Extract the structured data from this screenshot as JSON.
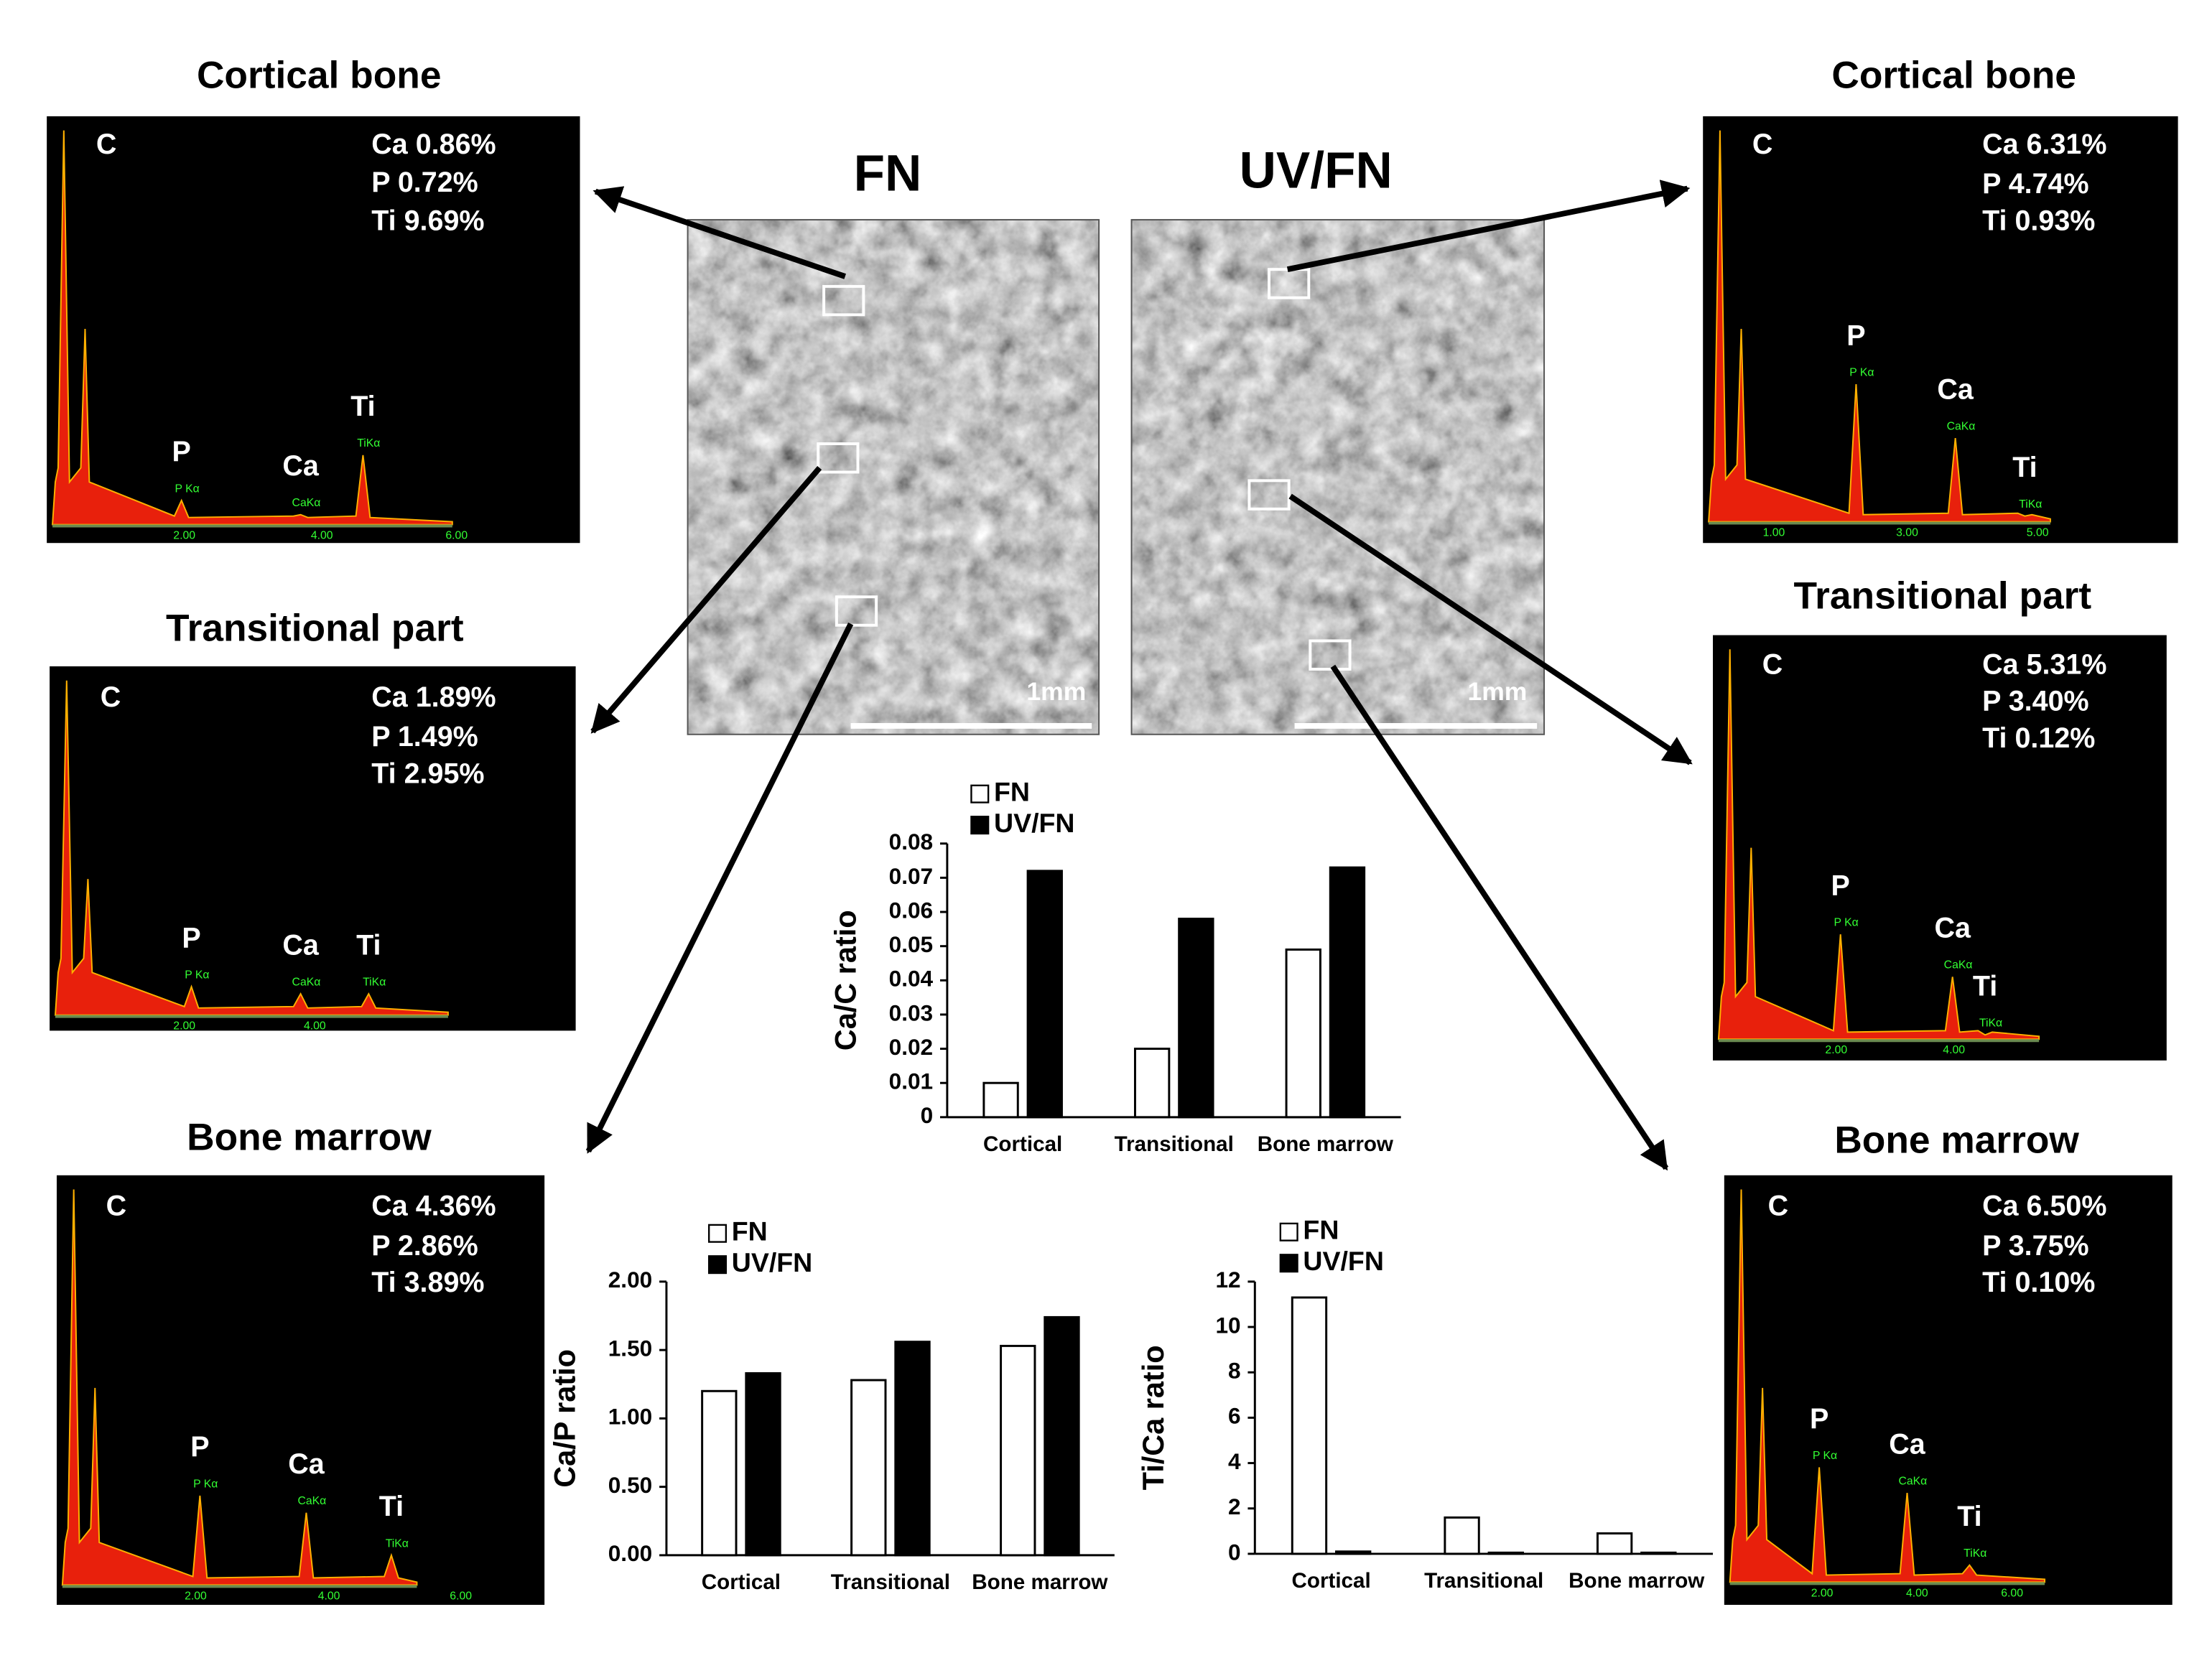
{
  "chart_data": [
    {
      "type": "bar",
      "ylabel": "Ca/C ratio",
      "categories": [
        "Cortical",
        "Transitional",
        "Bone marrow"
      ],
      "series": [
        {
          "name": "FN",
          "color": "#ffffff",
          "values": [
            0.01,
            0.02,
            0.049
          ]
        },
        {
          "name": "UV/FN",
          "color": "#000000",
          "values": [
            0.072,
            0.058,
            0.073
          ]
        }
      ],
      "ylim": [
        0,
        0.08
      ],
      "yticks": [
        0,
        0.01,
        0.02,
        0.03,
        0.04,
        0.05,
        0.06,
        0.07,
        0.08
      ]
    },
    {
      "type": "bar",
      "ylabel": "Ca/P ratio",
      "categories": [
        "Cortical",
        "Transitional",
        "Bone marrow"
      ],
      "series": [
        {
          "name": "FN",
          "color": "#ffffff",
          "values": [
            1.2,
            1.28,
            1.53
          ]
        },
        {
          "name": "UV/FN",
          "color": "#000000",
          "values": [
            1.33,
            1.56,
            1.74
          ]
        }
      ],
      "ylim": [
        0,
        2
      ],
      "yticks": [
        {
          "value": 0,
          "label": "0.00"
        },
        {
          "value": 0.5,
          "label": "0.50"
        },
        {
          "value": 1,
          "label": "1.00"
        },
        {
          "value": 1.5,
          "label": "1.50"
        },
        {
          "value": 2,
          "label": "2.00"
        }
      ]
    },
    {
      "type": "bar",
      "ylabel": "Ti/Ca ratio",
      "categories": [
        "Cortical",
        "Transitional",
        "Bone marrow"
      ],
      "series": [
        {
          "name": "FN",
          "color": "#ffffff",
          "values": [
            11.3,
            1.6,
            0.9
          ]
        },
        {
          "name": "UV/FN",
          "color": "#000000",
          "values": [
            0.1,
            0.05,
            0.05
          ]
        }
      ],
      "ylim": [
        0,
        12
      ],
      "yticks": [
        0,
        2,
        4,
        6,
        8,
        10,
        12
      ]
    }
  ],
  "sem_images": [
    {
      "title": "FN",
      "scale": "1mm"
    },
    {
      "title": "UV/FN",
      "scale": "1mm"
    }
  ],
  "spectra": [
    {
      "title": "Cortical bone",
      "element": "C",
      "composition": [
        "Ca 0.86%",
        "P 0.72%",
        "Ti 9.69%"
      ],
      "peaks": [
        "P",
        "Ca",
        "Ti"
      ],
      "peak_lines": [
        "P Kα",
        "CaKα",
        "TiKα"
      ],
      "ticks": [
        "2.00",
        "4.00",
        "6.00"
      ]
    },
    {
      "title": "Transitional part",
      "element": "C",
      "composition": [
        "Ca 1.89%",
        "P 1.49%",
        "Ti 2.95%"
      ],
      "peaks": [
        "P",
        "Ca",
        "Ti"
      ],
      "peak_lines": [
        "P Kα",
        "CaKα",
        "TiKα"
      ],
      "ticks": [
        "2.00",
        "4.00"
      ]
    },
    {
      "title": "Bone marrow",
      "element": "C",
      "composition": [
        "Ca 4.36%",
        "P 2.86%",
        "Ti 3.89%"
      ],
      "peaks": [
        "P",
        "Ca",
        "Ti"
      ],
      "peak_lines": [
        "P Kα",
        "CaKα",
        "TiKα"
      ],
      "ticks": [
        "2.00",
        "4.00",
        "6.00"
      ]
    },
    {
      "title": "Cortical bone",
      "element": "C",
      "composition": [
        "Ca 6.31%",
        "P 4.74%",
        "Ti 0.93%"
      ],
      "peaks": [
        "P",
        "Ca",
        "Ti"
      ],
      "peak_lines": [
        "P Kα",
        "CaKα",
        "TiKα"
      ],
      "ticks": [
        "1.00",
        "3.00",
        "5.00"
      ]
    },
    {
      "title": "Transitional part",
      "element": "C",
      "composition": [
        "Ca 5.31%",
        "P 3.40%",
        "Ti 0.12%"
      ],
      "peaks": [
        "P",
        "Ca",
        "Ti"
      ],
      "peak_lines": [
        "P Kα",
        "CaKα",
        "TiKα"
      ],
      "ticks": [
        "2.00",
        "4.00"
      ]
    },
    {
      "title": "Bone marrow",
      "element": "C",
      "composition": [
        "Ca 6.50%",
        "P 3.75%",
        "Ti 0.10%"
      ],
      "peaks": [
        "P",
        "Ca",
        "Ti"
      ],
      "peak_lines": [
        "P Kα",
        "CaKα",
        "TiKα"
      ],
      "ticks": [
        "2.00",
        "4.00",
        "6.00"
      ]
    }
  ]
}
